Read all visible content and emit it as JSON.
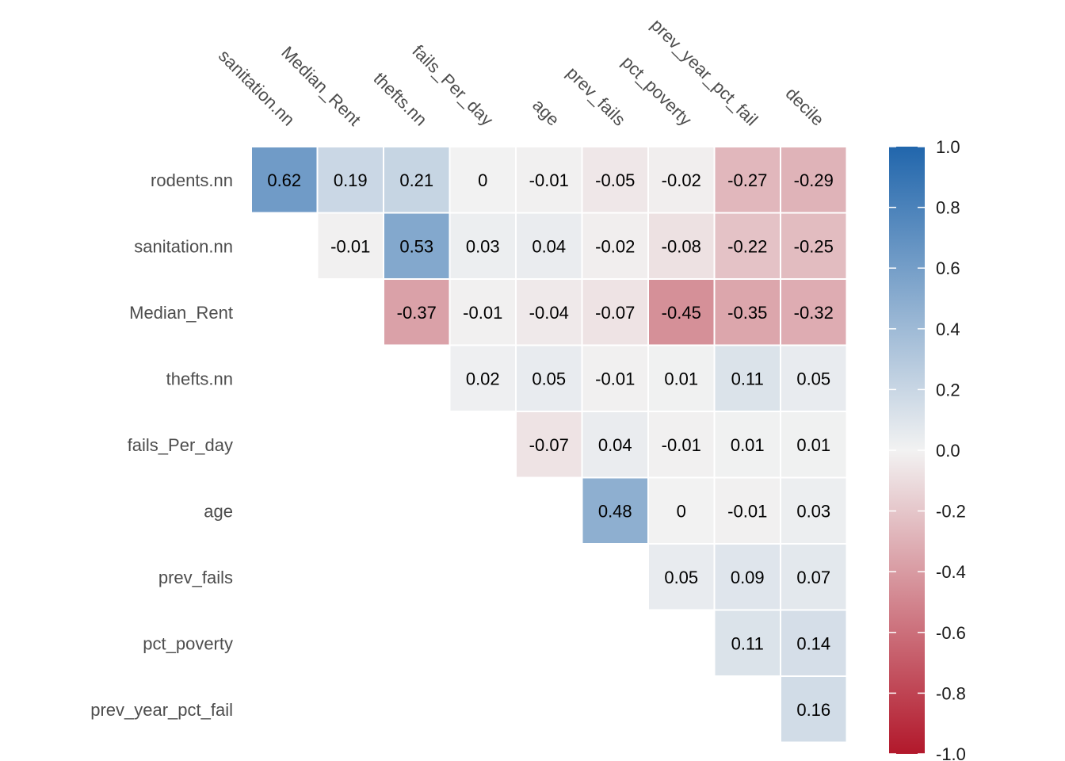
{
  "chart_data": {
    "type": "heatmap",
    "title": "",
    "rows": [
      "rodents.nn",
      "sanitation.nn",
      "Median_Rent",
      "thefts.nn",
      "fails_Per_day",
      "age",
      "prev_fails",
      "pct_poverty",
      "prev_year_pct_fail"
    ],
    "columns": [
      "sanitation.nn",
      "Median_Rent",
      "thefts.nn",
      "fails_Per_day",
      "age",
      "prev_fails",
      "pct_poverty",
      "prev_year_pct_fail",
      "decile"
    ],
    "matrix": [
      [
        0.62,
        0.19,
        0.21,
        0,
        -0.01,
        -0.05,
        -0.02,
        -0.27,
        -0.29
      ],
      [
        null,
        -0.01,
        0.53,
        0.03,
        0.04,
        -0.02,
        -0.08,
        -0.22,
        -0.25
      ],
      [
        null,
        null,
        -0.37,
        -0.01,
        -0.04,
        -0.07,
        -0.45,
        -0.35,
        -0.32
      ],
      [
        null,
        null,
        null,
        0.02,
        0.05,
        -0.01,
        0.01,
        0.11,
        0.05
      ],
      [
        null,
        null,
        null,
        null,
        -0.07,
        0.04,
        -0.01,
        0.01,
        0.01
      ],
      [
        null,
        null,
        null,
        null,
        null,
        0.48,
        0,
        -0.01,
        0.03
      ],
      [
        null,
        null,
        null,
        null,
        null,
        null,
        0.05,
        0.09,
        0.07
      ],
      [
        null,
        null,
        null,
        null,
        null,
        null,
        null,
        0.11,
        0.14
      ],
      [
        null,
        null,
        null,
        null,
        null,
        null,
        null,
        null,
        0.16
      ]
    ],
    "color_scale": {
      "min": -1.0,
      "max": 1.0,
      "low_color": "#b2182b",
      "mid_color": "#f2f2f2",
      "high_color": "#2166ac",
      "tick_values": [
        1.0,
        0.8,
        0.6,
        0.4,
        0.2,
        0.0,
        -0.2,
        -0.4,
        -0.6,
        -0.8,
        -1.0
      ],
      "tick_labels": [
        "1.0",
        "0.8",
        "0.6",
        "0.4",
        "0.2",
        "0.0",
        "-0.2",
        "-0.4",
        "-0.6",
        "-0.8",
        "-1.0"
      ]
    },
    "grid": false,
    "legend": "right"
  }
}
